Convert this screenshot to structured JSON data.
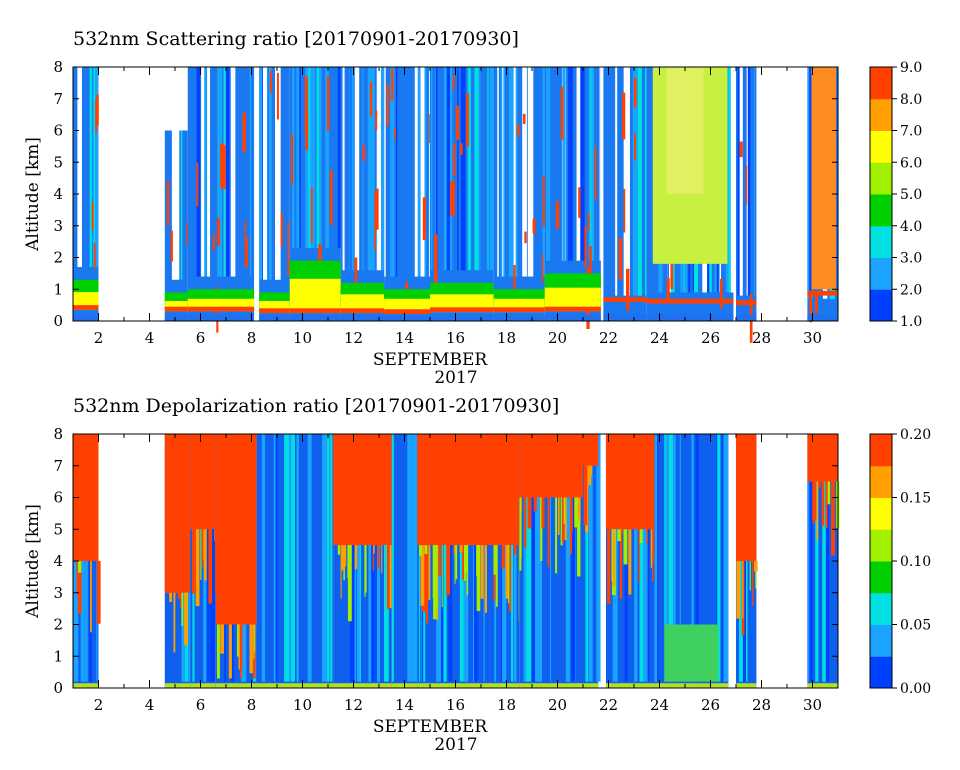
{
  "chart_data": [
    {
      "type": "heatmap",
      "title": "532nm Scattering ratio [20170901-20170930]",
      "xlabel": "SEPTEMBER",
      "xlabel2": "2017",
      "ylabel": "Altitude [km]",
      "xlim": [
        1,
        31
      ],
      "ylim": [
        0,
        8
      ],
      "x_ticks": [
        2,
        4,
        6,
        8,
        10,
        12,
        14,
        16,
        18,
        20,
        22,
        24,
        26,
        28,
        30
      ],
      "y_ticks": [
        0,
        1,
        2,
        3,
        4,
        5,
        6,
        7,
        8
      ],
      "colorbar": {
        "min": 1.0,
        "max": 9.0,
        "ticks": [
          "1.0",
          "2.0",
          "3.0",
          "4.0",
          "5.0",
          "6.0",
          "7.0",
          "8.0",
          "9.0"
        ],
        "colors": [
          "#0040ff",
          "#1aa3ff",
          "#00e0e0",
          "#00d000",
          "#a0f000",
          "#ffff00",
          "#ffa000",
          "#ff4000"
        ]
      },
      "columns": [
        {
          "x0": 1.0,
          "x1": 2.0,
          "top": 8.0,
          "blue": 0.22,
          "dense": 1.3,
          "red": 0.35
        },
        {
          "x0": 4.6,
          "x1": 5.5,
          "top": 6.0,
          "blue": 0.22,
          "dense": 0.9,
          "red": 0.3
        },
        {
          "x0": 5.5,
          "x1": 8.1,
          "top": 8.0,
          "blue": 0.22,
          "dense": 1.0,
          "red": 0.3
        },
        {
          "x0": 8.3,
          "x1": 9.5,
          "top": 8.0,
          "blue": 0.2,
          "dense": 0.9,
          "red": 0.25
        },
        {
          "x0": 9.5,
          "x1": 11.5,
          "top": 8.0,
          "blue": 0.2,
          "dense": 1.9,
          "red": 0.25
        },
        {
          "x0": 11.5,
          "x1": 13.2,
          "top": 8.0,
          "blue": 0.2,
          "dense": 1.2,
          "red": 0.25
        },
        {
          "x0": 13.2,
          "x1": 15.0,
          "top": 8.0,
          "blue": 0.2,
          "dense": 1.0,
          "red": 0.22
        },
        {
          "x0": 15.0,
          "x1": 17.5,
          "top": 8.0,
          "blue": 0.2,
          "dense": 1.2,
          "red": 0.28
        },
        {
          "x0": 17.5,
          "x1": 19.5,
          "top": 8.0,
          "blue": 0.2,
          "dense": 1.0,
          "red": 0.28
        },
        {
          "x0": 19.5,
          "x1": 21.7,
          "top": 8.0,
          "blue": 0.2,
          "dense": 1.5,
          "red": 0.3
        },
        {
          "x0": 21.8,
          "x1": 23.5,
          "top": 8.0,
          "blue": 0.2,
          "dense": 0.4,
          "red": 0.6
        },
        {
          "x0": 23.5,
          "x1": 26.9,
          "top": 8.0,
          "blue": 0.2,
          "dense": 0.5,
          "red": 0.55,
          "yellow": 1.8
        },
        {
          "x0": 27.0,
          "x1": 27.8,
          "top": 8.0,
          "blue": 0.2,
          "dense": 0.4,
          "red": 0.5
        },
        {
          "x0": 29.8,
          "x1": 31.0,
          "top": 8.0,
          "blue": 0.2,
          "dense": 0.3,
          "red": 0.8,
          "orange": 1.0
        }
      ]
    },
    {
      "type": "heatmap",
      "title": "532nm Depolarization ratio [20170901-20170930]",
      "xlabel": "SEPTEMBER",
      "xlabel2": "2017",
      "ylabel": "Altitude [km]",
      "xlim": [
        1,
        31
      ],
      "ylim": [
        0,
        8
      ],
      "x_ticks": [
        2,
        4,
        6,
        8,
        10,
        12,
        14,
        16,
        18,
        20,
        22,
        24,
        26,
        28,
        30
      ],
      "y_ticks": [
        0,
        1,
        2,
        3,
        4,
        5,
        6,
        7,
        8
      ],
      "colorbar": {
        "min": 0.0,
        "max": 0.2,
        "ticks": [
          "0.00",
          "0.05",
          "0.10",
          "0.15",
          "0.20"
        ],
        "colors": [
          "#0040ff",
          "#1aa3ff",
          "#00e0e0",
          "#00d000",
          "#a0f000",
          "#ffff00",
          "#ffa000",
          "#ff4000"
        ]
      },
      "columns": [
        {
          "x0": 1.0,
          "x1": 2.0,
          "top": 8.0,
          "redFrom": 4.0
        },
        {
          "x0": 4.6,
          "x1": 5.6,
          "top": 8.0,
          "redFrom": 3.0
        },
        {
          "x0": 5.6,
          "x1": 6.6,
          "top": 8.0,
          "redFrom": 5.0
        },
        {
          "x0": 6.6,
          "x1": 8.2,
          "top": 8.0,
          "redFrom": 2.0
        },
        {
          "x0": 8.2,
          "x1": 11.2,
          "top": 8.0,
          "redFrom": 9.0
        },
        {
          "x0": 11.2,
          "x1": 13.5,
          "top": 8.0,
          "redFrom": 4.5
        },
        {
          "x0": 13.5,
          "x1": 14.5,
          "top": 8.0,
          "redFrom": 9.0
        },
        {
          "x0": 14.5,
          "x1": 18.5,
          "top": 8.0,
          "redFrom": 4.5
        },
        {
          "x0": 18.5,
          "x1": 21.0,
          "top": 8.0,
          "redFrom": 6.0
        },
        {
          "x0": 21.0,
          "x1": 21.6,
          "top": 8.0,
          "redFrom": 7.0
        },
        {
          "x0": 21.9,
          "x1": 23.8,
          "top": 8.0,
          "redFrom": 5.0
        },
        {
          "x0": 23.8,
          "x1": 26.7,
          "top": 8.0,
          "redFrom": 9.0,
          "green": 2.0
        },
        {
          "x0": 27.0,
          "x1": 27.8,
          "top": 8.0,
          "redFrom": 4.0
        },
        {
          "x0": 29.8,
          "x1": 31.0,
          "top": 8.0,
          "redFrom": 6.5
        }
      ]
    }
  ]
}
